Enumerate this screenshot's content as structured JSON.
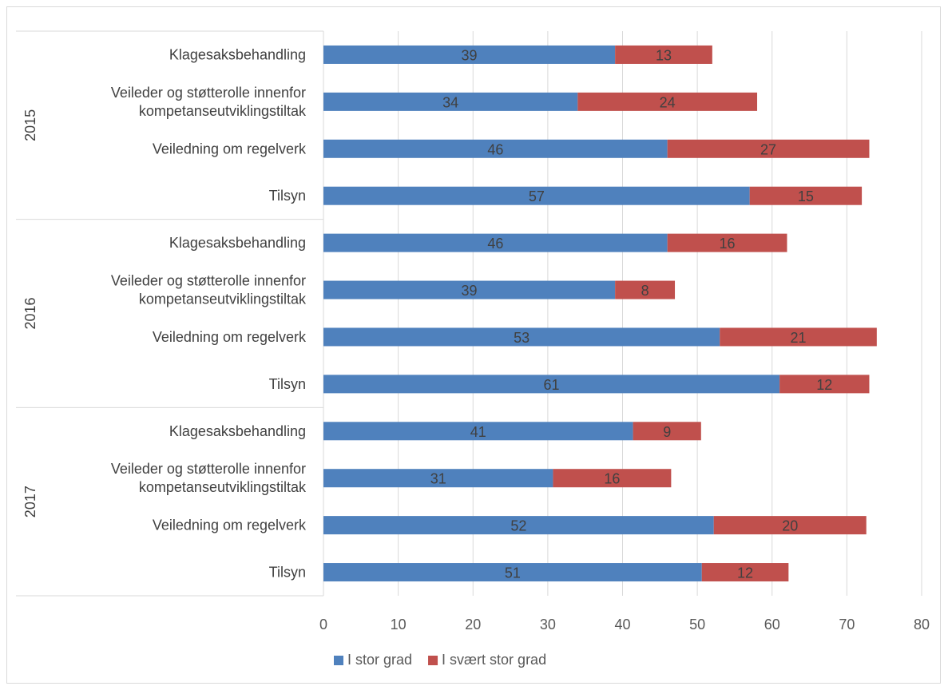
{
  "chart_data": {
    "type": "bar",
    "orientation": "horizontal",
    "stacked": true,
    "groups": [
      {
        "label": "2015",
        "categories": [
          "Klagesaksbehandling",
          "Veileder og støtterolle innenfor kompetanseutviklingstiltak",
          "Veiledning om regelverk",
          "Tilsyn"
        ]
      },
      {
        "label": "2016",
        "categories": [
          "Klagesaksbehandling",
          "Veileder og støtterolle innenfor kompetanseutviklingstiltak",
          "Veiledning om regelverk",
          "Tilsyn"
        ]
      },
      {
        "label": "2017",
        "categories": [
          "Klagesaksbehandling",
          "Veileder og støtterolle innenfor kompetanseutviklingstiltak",
          "Veiledning om regelverk",
          "Tilsyn"
        ]
      }
    ],
    "category_display": {
      "Klagesaksbehandling": [
        "Klagesaksbehandling"
      ],
      "Veileder og støtterolle innenfor kompetanseutviklingstiltak": [
        "Veileder og støtterolle innenfor",
        "kompetanseutviklingstiltak"
      ],
      "Veiledning om regelverk": [
        "Veiledning om regelverk"
      ],
      "Tilsyn": [
        "Tilsyn"
      ]
    },
    "series": [
      {
        "name": "I stor grad",
        "color": "#4f81bd",
        "values": [
          39,
          34,
          46,
          57,
          46,
          39,
          53,
          61,
          41.4,
          30.7,
          52.2,
          50.6
        ],
        "labels": [
          "39",
          "34",
          "46",
          "57",
          "46",
          "39",
          "53",
          "61",
          "41",
          "31",
          "52",
          "51"
        ]
      },
      {
        "name": "I svært stor grad",
        "color": "#c0504d",
        "values": [
          13,
          24,
          27,
          15,
          16,
          8,
          21,
          12,
          9.1,
          15.8,
          20.4,
          11.6
        ],
        "labels": [
          "13",
          "24",
          "27",
          "15",
          "16",
          "8",
          "21",
          "12",
          "9",
          "16",
          "20",
          "12"
        ]
      }
    ],
    "xlim": [
      0,
      80
    ],
    "xticks": [
      "0",
      "10",
      "20",
      "30",
      "40",
      "50",
      "60",
      "70",
      "80"
    ],
    "grid": true,
    "legend": "bottom"
  }
}
